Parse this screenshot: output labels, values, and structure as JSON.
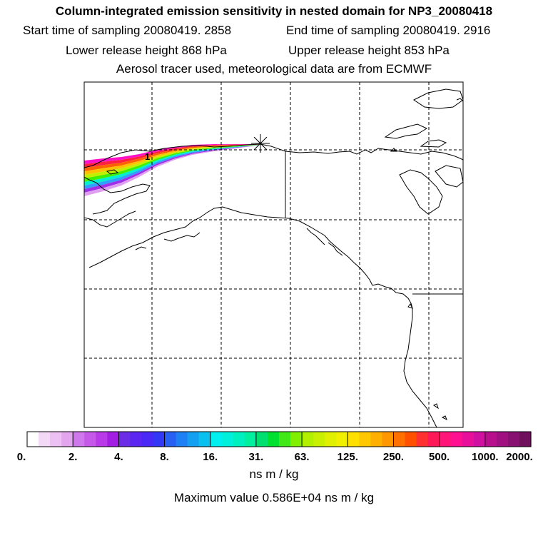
{
  "header": {
    "title": "Column-integrated emission sensitivity in nested domain for NP3_20080418",
    "start": "Start time of sampling 20080419.  2858",
    "end": "End time of sampling 20080419.  2916",
    "lower": "Lower release height  868 hPa",
    "upper": "Upper release height  853 hPa",
    "tracer": "Aerosol tracer used, meteorological data are from ECMWF"
  },
  "colorbar": {
    "tick_labels": [
      "0.",
      "2.",
      "4.",
      "8.",
      "16.",
      "31.",
      "63.",
      "125.",
      "250.",
      "500.",
      "1000.",
      "2000."
    ],
    "colors": [
      "#ffffff",
      "#f4d9f6",
      "#ecc0f2",
      "#e3a6ee",
      "#cf78ec",
      "#c55ae9",
      "#b93be7",
      "#a31ee3",
      "#6b2ee6",
      "#5a26f0",
      "#4a28f5",
      "#3238f6",
      "#2860f4",
      "#1e80f2",
      "#14a0f0",
      "#0ac0ef",
      "#00f0f0",
      "#00f0dc",
      "#00f0c0",
      "#00f0a0",
      "#00e070",
      "#00e030",
      "#40e818",
      "#80f000",
      "#b0f000",
      "#c8f000",
      "#e0f000",
      "#f0f000",
      "#ffe000",
      "#ffc800",
      "#ffb000",
      "#ff9800",
      "#ff7000",
      "#ff5000",
      "#ff3030",
      "#ff1858",
      "#ff1478",
      "#ff1090",
      "#e8109a",
      "#d010a0",
      "#b8108c",
      "#a01080",
      "#881070",
      "#70105c"
    ],
    "units": "ns m / kg",
    "max_value": "Maximum value  0.586E+04 ns m / kg"
  },
  "map": {
    "plume_colors": [
      "#ff10c8",
      "#ff2040",
      "#ff6000",
      "#ffc000",
      "#c0f000",
      "#40f000",
      "#00f0d0",
      "#30a0ff",
      "#a030e8",
      "#e0a0f0"
    ],
    "release_marker": "*",
    "contour_label": "1"
  }
}
